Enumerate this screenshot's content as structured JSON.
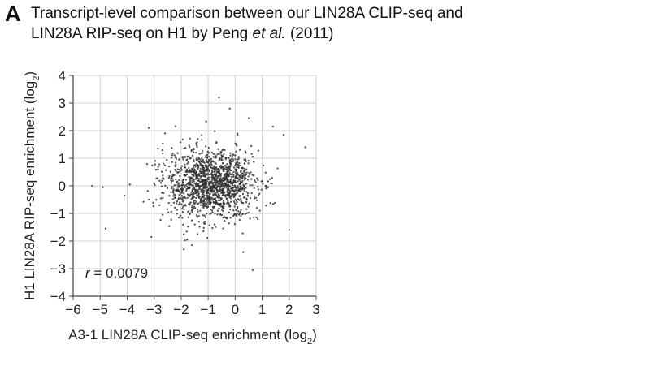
{
  "panel_label": "A",
  "title": {
    "line1": "Transcript-level comparison between our LIN28A CLIP-seq and",
    "line2_prefix": "LIN28A RIP-seq on H1 by Peng ",
    "line2_italic": "et al.",
    "line2_suffix": " (2011)"
  },
  "chart_data": {
    "type": "scatter",
    "xlabel": "A3-1 LIN28A CLIP-seq enrichment (log2)",
    "xlabel_main": "A3-1 LIN28A CLIP-seq enrichment (log",
    "xlabel_sub": "2",
    "xlabel_close": ")",
    "ylabel": "H1 LIN28A RIP-seq enrichment (log2)",
    "ylabel_main": "H1 LIN28A RIP-seq enrichment (log",
    "ylabel_sub": "2",
    "ylabel_close": ")",
    "xlim": [
      -6,
      3
    ],
    "ylim": [
      -4,
      4
    ],
    "xticks": [
      -6,
      -5,
      -4,
      -3,
      -2,
      -1,
      0,
      1,
      2,
      3
    ],
    "yticks": [
      -4,
      -3,
      -2,
      -1,
      0,
      1,
      2,
      3,
      4
    ],
    "xtick_labels": [
      "−6",
      "−5",
      "−4",
      "−3",
      "−2",
      "−1",
      "0",
      "1",
      "2",
      "3"
    ],
    "ytick_labels": [
      "−4",
      "−3",
      "−2",
      "−1",
      "0",
      "1",
      "2",
      "3",
      "4"
    ],
    "grid": true,
    "annotation": {
      "var": "r",
      "text": " = 0.0079",
      "r": 0.0079
    },
    "point_color": "#333333",
    "points_described": {
      "n_approx": 1500,
      "center": [
        -0.9,
        0.05
      ],
      "sd": [
        0.85,
        0.6
      ],
      "outliers": [
        [
          -5.3,
          0.0
        ],
        [
          -4.9,
          -0.05
        ],
        [
          -4.8,
          -1.55
        ],
        [
          -3.2,
          2.1
        ],
        [
          -0.6,
          3.2
        ],
        [
          -0.2,
          2.8
        ],
        [
          -3.1,
          -1.85
        ],
        [
          -1.9,
          -2.3
        ],
        [
          0.3,
          -2.4
        ],
        [
          0.65,
          -3.05
        ],
        [
          1.4,
          2.15
        ],
        [
          2.6,
          1.4
        ],
        [
          -3.2,
          -0.5
        ],
        [
          -3.9,
          0.05
        ],
        [
          2.0,
          -1.6
        ],
        [
          -2.6,
          1.9
        ],
        [
          1.8,
          1.85
        ],
        [
          -1.6,
          -2.15
        ],
        [
          0.5,
          2.45
        ],
        [
          -4.1,
          -0.35
        ]
      ]
    }
  }
}
